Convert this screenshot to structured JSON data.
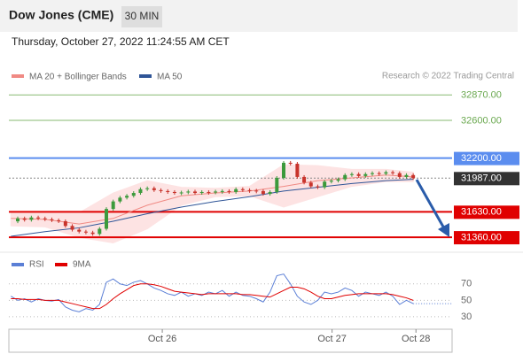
{
  "header": {
    "title": "Dow Jones (CME)",
    "timeframe": "30 MIN",
    "datetime": "Thursday, October 27, 2022 11:24:55 AM CET",
    "credit": "Research © 2022 Trading Central"
  },
  "chart_data": [
    {
      "type": "candlestick",
      "closes": [
        31529,
        31560,
        31545,
        31570,
        31560,
        31550,
        31540,
        31530,
        31480,
        31440,
        31420,
        31410,
        31395,
        31450,
        31660,
        31740,
        31780,
        31800,
        31830,
        31870,
        31880,
        31860,
        31850,
        31840,
        31830,
        31835,
        31845,
        31830,
        31840,
        31835,
        31845,
        31850,
        31840,
        31870,
        31860,
        31855,
        31850,
        31820,
        31840,
        31990,
        32150,
        32140,
        32000,
        31940,
        31900,
        31890,
        31950,
        31960,
        31975,
        32020,
        32030,
        32010,
        32030,
        32040,
        32035,
        32050,
        32040,
        32000,
        32020,
        31987
      ],
      "up_color": "#3c9a3c",
      "down_color": "#c8342c",
      "ma_x": [
        0,
        5,
        10,
        15,
        20,
        25,
        30,
        35,
        40,
        45,
        50,
        55,
        59
      ],
      "series": [
        {
          "name": "MA 20 + Bollinger Bands",
          "color": "#f08a84",
          "values": [
            31560,
            31550,
            31500,
            31560,
            31700,
            31800,
            31830,
            31850,
            31900,
            31960,
            31990,
            32020,
            32000
          ]
        },
        {
          "name": "MA 50",
          "color": "#2f5597",
          "values": [
            31370,
            31420,
            31460,
            31530,
            31610,
            31680,
            31740,
            31790,
            31850,
            31890,
            31930,
            31960,
            31975
          ]
        }
      ],
      "bollinger_upper": [
        31620,
        31620,
        31620,
        31830,
        31960,
        31890,
        31880,
        31900,
        32130,
        32120,
        32080,
        32080,
        32050
      ],
      "bollinger_lower": [
        31480,
        31470,
        31360,
        31300,
        31450,
        31700,
        31790,
        31800,
        31680,
        31790,
        31900,
        31950,
        31950
      ],
      "band_color": "#fde3e3",
      "levels": [
        {
          "value": 32870,
          "label": "32870.00",
          "color": "#6aa84f",
          "boxed": false
        },
        {
          "value": 32600,
          "label": "32600.00",
          "color": "#6aa84f",
          "boxed": false
        },
        {
          "value": 32200,
          "label": "32200.00",
          "color": "#5b8def",
          "boxed": true
        },
        {
          "value": 31987,
          "label": "31987.00",
          "color": "#333333",
          "boxed": true,
          "dashed": true
        },
        {
          "value": 31630,
          "label": "31630.00",
          "color": "#e00000",
          "boxed": true
        },
        {
          "value": 31360,
          "label": "31360.00",
          "color": "#e00000",
          "boxed": true
        }
      ],
      "ylim": [
        31220,
        32985
      ],
      "xlim": [
        -0.3,
        64.7
      ]
    },
    {
      "type": "line",
      "series": [
        {
          "name": "RSI",
          "color": "#5b7fd6",
          "values": [
            55,
            50,
            52,
            48,
            52,
            50,
            49,
            51,
            42,
            38,
            36,
            40,
            38,
            45,
            72,
            76,
            70,
            68,
            72,
            74,
            70,
            65,
            62,
            58,
            56,
            60,
            55,
            58,
            56,
            60,
            58,
            62,
            55,
            60,
            56,
            55,
            52,
            48,
            60,
            80,
            82,
            70,
            55,
            48,
            45,
            50,
            60,
            58,
            60,
            65,
            62,
            55,
            60,
            58,
            56,
            60,
            55,
            45,
            50,
            46
          ]
        },
        {
          "name": "9MA",
          "color": "#e00000",
          "values": [
            52,
            52,
            51,
            51,
            51,
            50,
            50,
            50,
            48,
            46,
            44,
            42,
            40,
            40,
            45,
            52,
            58,
            63,
            68,
            70,
            70,
            69,
            67,
            64,
            61,
            60,
            59,
            58,
            57,
            58,
            58,
            58,
            58,
            58,
            57,
            57,
            56,
            55,
            54,
            58,
            62,
            66,
            66,
            64,
            60,
            55,
            52,
            52,
            54,
            56,
            57,
            58,
            58,
            58,
            58,
            58,
            57,
            55,
            53,
            50
          ]
        }
      ],
      "ylim": [
        17,
        87
      ],
      "yticks": [
        30,
        50,
        70
      ],
      "grid": true,
      "xlim": [
        -0.3,
        64.7
      ],
      "xticks": [
        {
          "value": 22.2,
          "label": "Oct 26"
        },
        {
          "value": 47.1,
          "label": "Oct 27"
        },
        {
          "value": 59.4,
          "label": "Oct 28"
        }
      ]
    }
  ]
}
